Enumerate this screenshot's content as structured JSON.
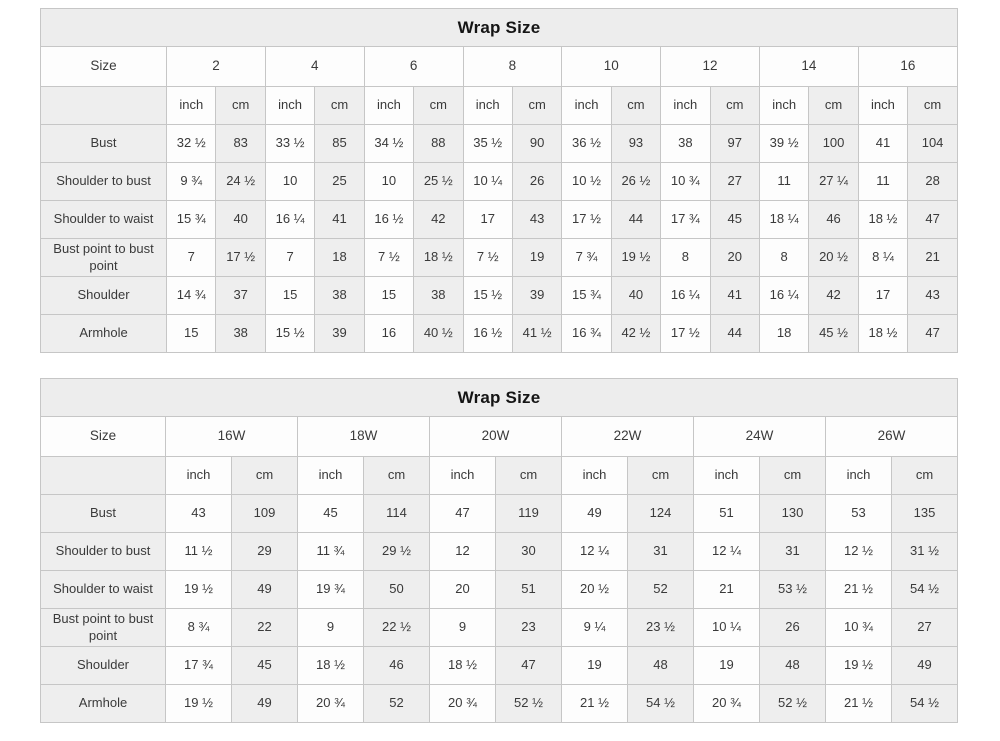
{
  "colors": {
    "cell_shaded": "#eeeeee",
    "cell_plain": "#fdfdfd",
    "border": "#c6c6c6",
    "title_bg": "#ededed",
    "text": "#3a3a3a"
  },
  "tables": [
    {
      "title": "Wrap Size",
      "corner_label": "Size",
      "units": [
        "inch",
        "cm"
      ],
      "sizes": [
        "2",
        "4",
        "6",
        "8",
        "10",
        "12",
        "14",
        "16"
      ],
      "rows": [
        {
          "label": "Bust",
          "values": [
            "32 ½",
            "83",
            "33 ½",
            "85",
            "34 ½",
            "88",
            "35 ½",
            "90",
            "36 ½",
            "93",
            "38",
            "97",
            "39 ½",
            "100",
            "41",
            "104"
          ]
        },
        {
          "label": "Shoulder to bust",
          "values": [
            "9 ¾",
            "24 ½",
            "10",
            "25",
            "10",
            "25 ½",
            "10 ¼",
            "26",
            "10 ½",
            "26 ½",
            "10 ¾",
            "27",
            "11",
            "27 ¼",
            "11",
            "28"
          ]
        },
        {
          "label": "Shoulder to waist",
          "values": [
            "15 ¾",
            "40",
            "16 ¼",
            "41",
            "16 ½",
            "42",
            "17",
            "43",
            "17 ½",
            "44",
            "17 ¾",
            "45",
            "18 ¼",
            "46",
            "18 ½",
            "47"
          ]
        },
        {
          "label": "Bust point to bust point",
          "values": [
            "7",
            "17 ½",
            "7",
            "18",
            "7 ½",
            "18 ½",
            "7 ½",
            "19",
            "7 ¾",
            "19 ½",
            "8",
            "20",
            "8",
            "20 ½",
            "8 ¼",
            "21"
          ]
        },
        {
          "label": "Shoulder",
          "values": [
            "14 ¾",
            "37",
            "15",
            "38",
            "15",
            "38",
            "15 ½",
            "39",
            "15 ¾",
            "40",
            "16 ¼",
            "41",
            "16 ¼",
            "42",
            "17",
            "43"
          ]
        },
        {
          "label": "Armhole",
          "values": [
            "15",
            "38",
            "15 ½",
            "39",
            "16",
            "40 ½",
            "16 ½",
            "41 ½",
            "16 ¾",
            "42 ½",
            "17 ½",
            "44",
            "18",
            "45 ½",
            "18 ½",
            "47"
          ]
        }
      ]
    },
    {
      "title": "Wrap Size",
      "corner_label": "Size",
      "units": [
        "inch",
        "cm"
      ],
      "sizes": [
        "16W",
        "18W",
        "20W",
        "22W",
        "24W",
        "26W"
      ],
      "rows": [
        {
          "label": "Bust",
          "values": [
            "43",
            "109",
            "45",
            "114",
            "47",
            "119",
            "49",
            "124",
            "51",
            "130",
            "53",
            "135"
          ]
        },
        {
          "label": "Shoulder to bust",
          "values": [
            "11 ½",
            "29",
            "11 ¾",
            "29 ½",
            "12",
            "30",
            "12 ¼",
            "31",
            "12 ¼",
            "31",
            "12 ½",
            "31 ½"
          ]
        },
        {
          "label": "Shoulder to waist",
          "values": [
            "19 ½",
            "49",
            "19 ¾",
            "50",
            "20",
            "51",
            "20 ½",
            "52",
            "21",
            "53 ½",
            "21 ½",
            "54 ½"
          ]
        },
        {
          "label": "Bust point to bust point",
          "values": [
            "8 ¾",
            "22",
            "9",
            "22 ½",
            "9",
            "23",
            "9 ¼",
            "23 ½",
            "10 ¼",
            "26",
            "10 ¾",
            "27"
          ]
        },
        {
          "label": "Shoulder",
          "values": [
            "17 ¾",
            "45",
            "18 ½",
            "46",
            "18 ½",
            "47",
            "19",
            "48",
            "19",
            "48",
            "19 ½",
            "49"
          ]
        },
        {
          "label": "Armhole",
          "values": [
            "19 ½",
            "49",
            "20 ¾",
            "52",
            "20 ¾",
            "52 ½",
            "21 ½",
            "54 ½",
            "20 ¾",
            "52 ½",
            "21 ½",
            "54 ½"
          ]
        }
      ]
    }
  ]
}
